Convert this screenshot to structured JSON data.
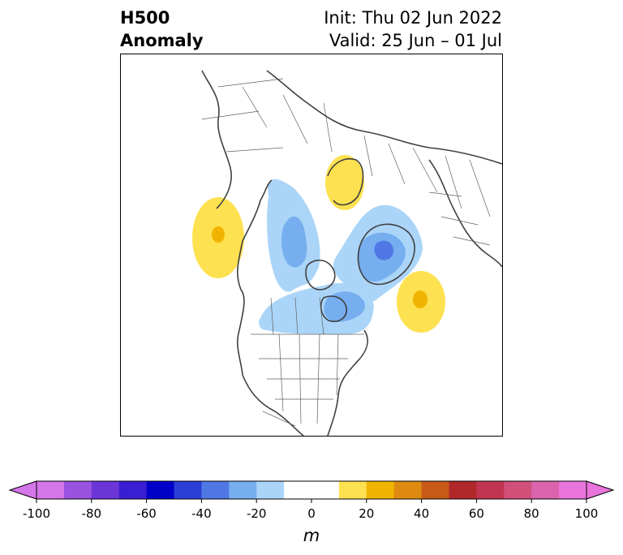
{
  "title": {
    "variable": "H500",
    "kind": "Anomaly",
    "init": "Init: Thu 02 Jun 2022",
    "valid": "Valid: 25 Jun – 01 Jul"
  },
  "colorbar": {
    "unit": "m",
    "min": -100,
    "max": 100,
    "step": 10,
    "extend": "both",
    "colors": [
      "#d575ea",
      "#9a52e1",
      "#6c35d8",
      "#3a1ed3",
      "#0000c8",
      "#2a3ed6",
      "#4f78e5",
      "#76aef0",
      "#aad5f8",
      "#ffffff",
      "#ffffff",
      "#fde150",
      "#f0b400",
      "#de8a10",
      "#c85a18",
      "#b0282a",
      "#c03650",
      "#d0507a",
      "#db63ab",
      "#e874dc"
    ],
    "ticks": [
      -100,
      -80,
      -60,
      -40,
      -20,
      0,
      20,
      40,
      60,
      80,
      100
    ],
    "tick_labels": [
      "-100",
      "-80",
      "-60",
      "-40",
      "-20",
      "0",
      "20",
      "40",
      "60",
      "80",
      "100"
    ]
  },
  "map": {
    "projection": "north-polar-stereographic",
    "region": "North America and Arctic",
    "anomalies": [
      {
        "sign": "positive",
        "location": "northeast Pacific / Gulf of Alaska",
        "level": [
          10,
          30
        ]
      },
      {
        "sign": "positive",
        "location": "Scandinavia",
        "level": [
          10,
          20
        ]
      },
      {
        "sign": "positive",
        "location": "north Atlantic",
        "level": [
          10,
          30
        ]
      },
      {
        "sign": "negative",
        "location": "east Siberia / Arctic",
        "level": [
          -30,
          -10
        ]
      },
      {
        "sign": "negative",
        "location": "Greenland / Baffin",
        "level": [
          -50,
          -10
        ]
      },
      {
        "sign": "negative",
        "location": "Hudson Bay / Canada",
        "level": [
          -40,
          -10
        ]
      }
    ]
  }
}
